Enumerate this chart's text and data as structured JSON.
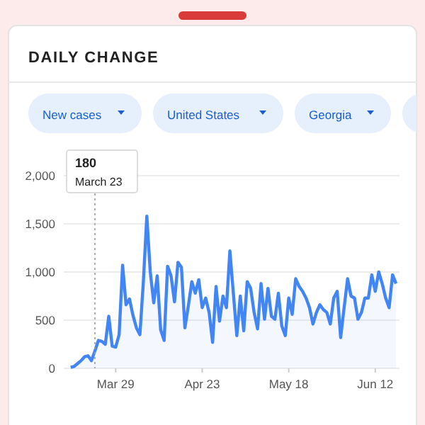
{
  "chart_data": {
    "type": "area",
    "title": "DAILY CHANGE",
    "annotations": [
      "New cases",
      "United States",
      "Georgia",
      "180",
      "March 23"
    ],
    "x": [
      "--03-16",
      "--03-17",
      "--03-18",
      "--03-19",
      "--03-20",
      "--03-21",
      "--03-22",
      "--03-23",
      "--03-24",
      "--03-25",
      "--03-26",
      "--03-27",
      "--03-28",
      "--03-29",
      "--03-30",
      "--03-31",
      "--04-01",
      "--04-02",
      "--04-03",
      "--04-04",
      "--04-05",
      "--04-06",
      "--04-07",
      "--04-08",
      "--04-09",
      "--04-10",
      "--04-11",
      "--04-12",
      "--04-13",
      "--04-14",
      "--04-15",
      "--04-16",
      "--04-17",
      "--04-18",
      "--04-19",
      "--04-20",
      "--04-21",
      "--04-22",
      "--04-23",
      "--04-24",
      "--04-25",
      "--04-26",
      "--04-27",
      "--04-28",
      "--04-29",
      "--04-30",
      "--05-01",
      "--05-02",
      "--05-03",
      "--05-04",
      "--05-05",
      "--05-06",
      "--05-07",
      "--05-08",
      "--05-09",
      "--05-10",
      "--05-11",
      "--05-12",
      "--05-13",
      "--05-14",
      "--05-15",
      "--05-16",
      "--05-17",
      "--05-18",
      "--05-19",
      "--05-20",
      "--05-21",
      "--05-22",
      "--05-23",
      "--05-24",
      "--05-25",
      "--05-26",
      "--05-27",
      "--05-28",
      "--05-29",
      "--05-30",
      "--05-31",
      "--06-01",
      "--06-02",
      "--06-03",
      "--06-04",
      "--06-05",
      "--06-06",
      "--06-07",
      "--06-08",
      "--06-09",
      "--06-10",
      "--06-11",
      "--06-12",
      "--06-13",
      "--06-14",
      "--06-15",
      "--06-16",
      "--06-17",
      "--06-18"
    ],
    "series": [
      {
        "color": "#4285f4",
        "values": [
          10,
          20,
          50,
          80,
          120,
          130,
          80,
          180,
          290,
          280,
          250,
          540,
          230,
          220,
          350,
          1070,
          660,
          720,
          550,
          420,
          350,
          900,
          1580,
          1000,
          680,
          960,
          400,
          290,
          1060,
          960,
          690,
          1100,
          1050,
          420,
          650,
          900,
          780,
          920,
          630,
          730,
          580,
          270,
          850,
          490,
          750,
          630,
          1220,
          780,
          340,
          750,
          390,
          900,
          830,
          580,
          410,
          880,
          510,
          830,
          540,
          510,
          780,
          440,
          340,
          730,
          560,
          930,
          850,
          800,
          730,
          630,
          460,
          580,
          660,
          610,
          580,
          460,
          730,
          800,
          320,
          630,
          930,
          750,
          730,
          510,
          580,
          730,
          730,
          970,
          800,
          1000,
          880,
          730,
          630,
          970,
          880
        ]
      }
    ],
    "xlim": [
      "--03-14",
      "--06-19"
    ],
    "xticks": [
      {
        "value": "--03-29",
        "label": "Mar 29"
      },
      {
        "value": "--04-23",
        "label": "Apr 23"
      },
      {
        "value": "--05-18",
        "label": "May 18"
      },
      {
        "value": "--06-12",
        "label": "Jun 12"
      }
    ],
    "ylim": [
      0,
      2000
    ],
    "yticks": [
      {
        "value": 0,
        "label": "0"
      },
      {
        "value": 500,
        "label": "500"
      },
      {
        "value": 1000,
        "label": "1,000"
      },
      {
        "value": 1500,
        "label": "1,500"
      },
      {
        "value": 2000,
        "label": "2,000"
      }
    ],
    "grid": "y",
    "ref_lines": [
      {
        "axis": "x",
        "value": "--03-23",
        "line_style": "dotted",
        "color": "#9e9e9e"
      }
    ]
  }
}
